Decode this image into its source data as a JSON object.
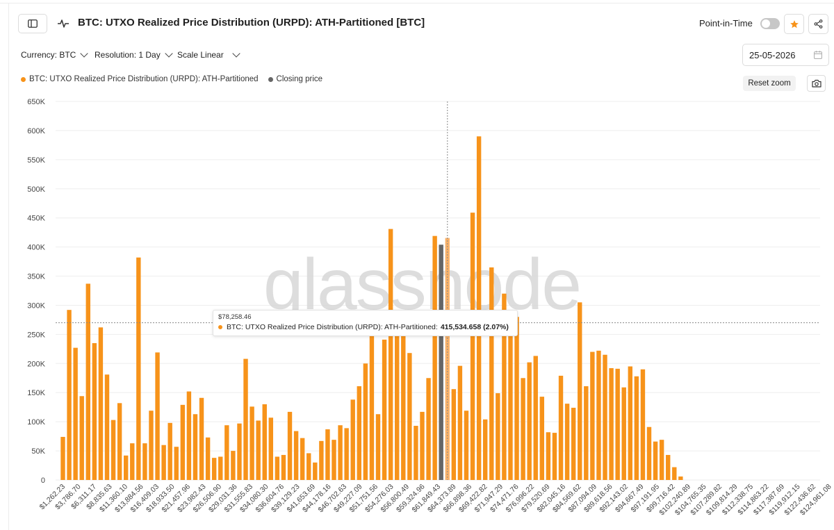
{
  "header": {
    "title": "BTC: UTXO Realized Price Distribution (URPD): ATH-Partitioned [BTC]",
    "point_in_time_label": "Point-in-Time"
  },
  "controls": {
    "currency": "Currency: BTC",
    "resolution": "Resolution: 1 Day",
    "scale": "Scale Linear",
    "date": "25-05-2026",
    "reset_zoom": "Reset zoom"
  },
  "legend": {
    "series_label": "BTC: UTXO Realized Price Distribution (URPD): ATH-Partitioned",
    "closing_label": "Closing price"
  },
  "tooltip": {
    "price": "$78,258.46",
    "series_label": "BTC: UTXO Realized Price Distribution (URPD): ATH-Partitioned:",
    "value": "415,534.658 (2.07%)"
  },
  "watermark": "glassnode",
  "colors": {
    "bar": "#f7931a",
    "bar_highlight": "#f9b26a",
    "closing": "#666666",
    "grid": "#eeeeee",
    "axis_text": "#444444"
  },
  "chart_data": {
    "type": "bar",
    "title": "BTC: UTXO Realized Price Distribution (URPD): ATH-Partitioned [BTC]",
    "ylim": [
      0,
      650000
    ],
    "yticks": [
      "0",
      "50K",
      "100K",
      "150K",
      "200K",
      "250K",
      "300K",
      "350K",
      "400K",
      "450K",
      "500K",
      "550K",
      "600K",
      "650K"
    ],
    "xticks": [
      "$1,262.23",
      "$3,786.70",
      "$6,311.17",
      "$8,835.63",
      "$11,360.10",
      "$13,884.56",
      "$16,409.03",
      "$18,933.50",
      "$21,457.96",
      "$23,982.43",
      "$26,506.90",
      "$29,031.36",
      "$31,555.83",
      "$34,080.30",
      "$36,604.76",
      "$39,129.23",
      "$41,653.69",
      "$44,178.16",
      "$46,702.63",
      "$49,227.09",
      "$51,751.56",
      "$54,276.03",
      "$56,800.49",
      "$59,324.96",
      "$61,849.43",
      "$64,373.89",
      "$66,898.36",
      "$69,422.82",
      "$71,947.29",
      "$74,471.76",
      "$76,996.22",
      "$79,520.69",
      "$82,045.16",
      "$84,569.62",
      "$87,094.09",
      "$89,618.56",
      "$92,143.02",
      "$94,667.49",
      "$97,191.95",
      "$99,716.42",
      "$102,240.89",
      "$104,765.35",
      "$107,289.82",
      "$109,814.29",
      "$112,338.75",
      "$114,863.22",
      "$117,387.69",
      "$119,912.15",
      "$122,436.62",
      "$124,961.08"
    ],
    "values": [
      74000,
      292000,
      227000,
      144000,
      337000,
      235000,
      262000,
      181000,
      103000,
      132000,
      42000,
      63000,
      382000,
      63000,
      119000,
      219000,
      60000,
      98000,
      57000,
      129000,
      152000,
      113000,
      141000,
      73000,
      38000,
      40000,
      94000,
      50000,
      97000,
      208000,
      126000,
      102000,
      130000,
      107000,
      40000,
      43000,
      117000,
      84000,
      72000,
      46000,
      30000,
      67000,
      87000,
      69000,
      94000,
      89000,
      138000,
      161000,
      200000,
      258000,
      113000,
      241000,
      431000,
      266000,
      251000,
      218000,
      93000,
      117000,
      175000,
      419000,
      404000,
      415535,
      156000,
      196000,
      119000,
      459000,
      590000,
      104000,
      365000,
      149000,
      320000,
      270000,
      280000,
      175000,
      202000,
      213000,
      143000,
      82000,
      81000,
      179000,
      131000,
      124000,
      305000,
      161000,
      220000,
      222000,
      215000,
      192000,
      191000,
      159000,
      195000,
      178000,
      190000,
      91000,
      66000,
      69000,
      43000,
      22000,
      6000
    ],
    "closing_price_index": 60,
    "highlight_index": 61,
    "crosshair_y": 270000
  }
}
